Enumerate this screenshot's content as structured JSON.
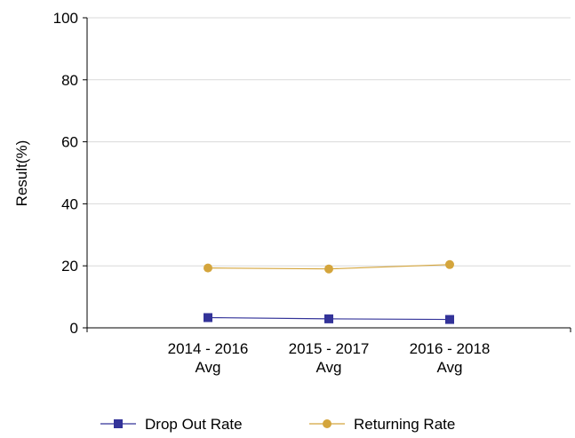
{
  "chart_data": {
    "type": "line",
    "y_label": "Result(%)",
    "categories": [
      "2014 - 2016 Avg",
      "2015 - 2017 Avg",
      "2016 - 2018 Avg"
    ],
    "series": [
      {
        "name": "Drop Out Rate",
        "color": "#333399",
        "marker": "square",
        "values": [
          3.3,
          2.9,
          2.7
        ]
      },
      {
        "name": "Returning Rate",
        "color": "#d4a53c",
        "marker": "circle",
        "values": [
          19.3,
          19.0,
          20.4
        ]
      }
    ],
    "ylim": [
      0,
      100
    ],
    "yticks": [
      0,
      20,
      40,
      60,
      80,
      100
    ],
    "grid": true,
    "legend": "bottom"
  }
}
